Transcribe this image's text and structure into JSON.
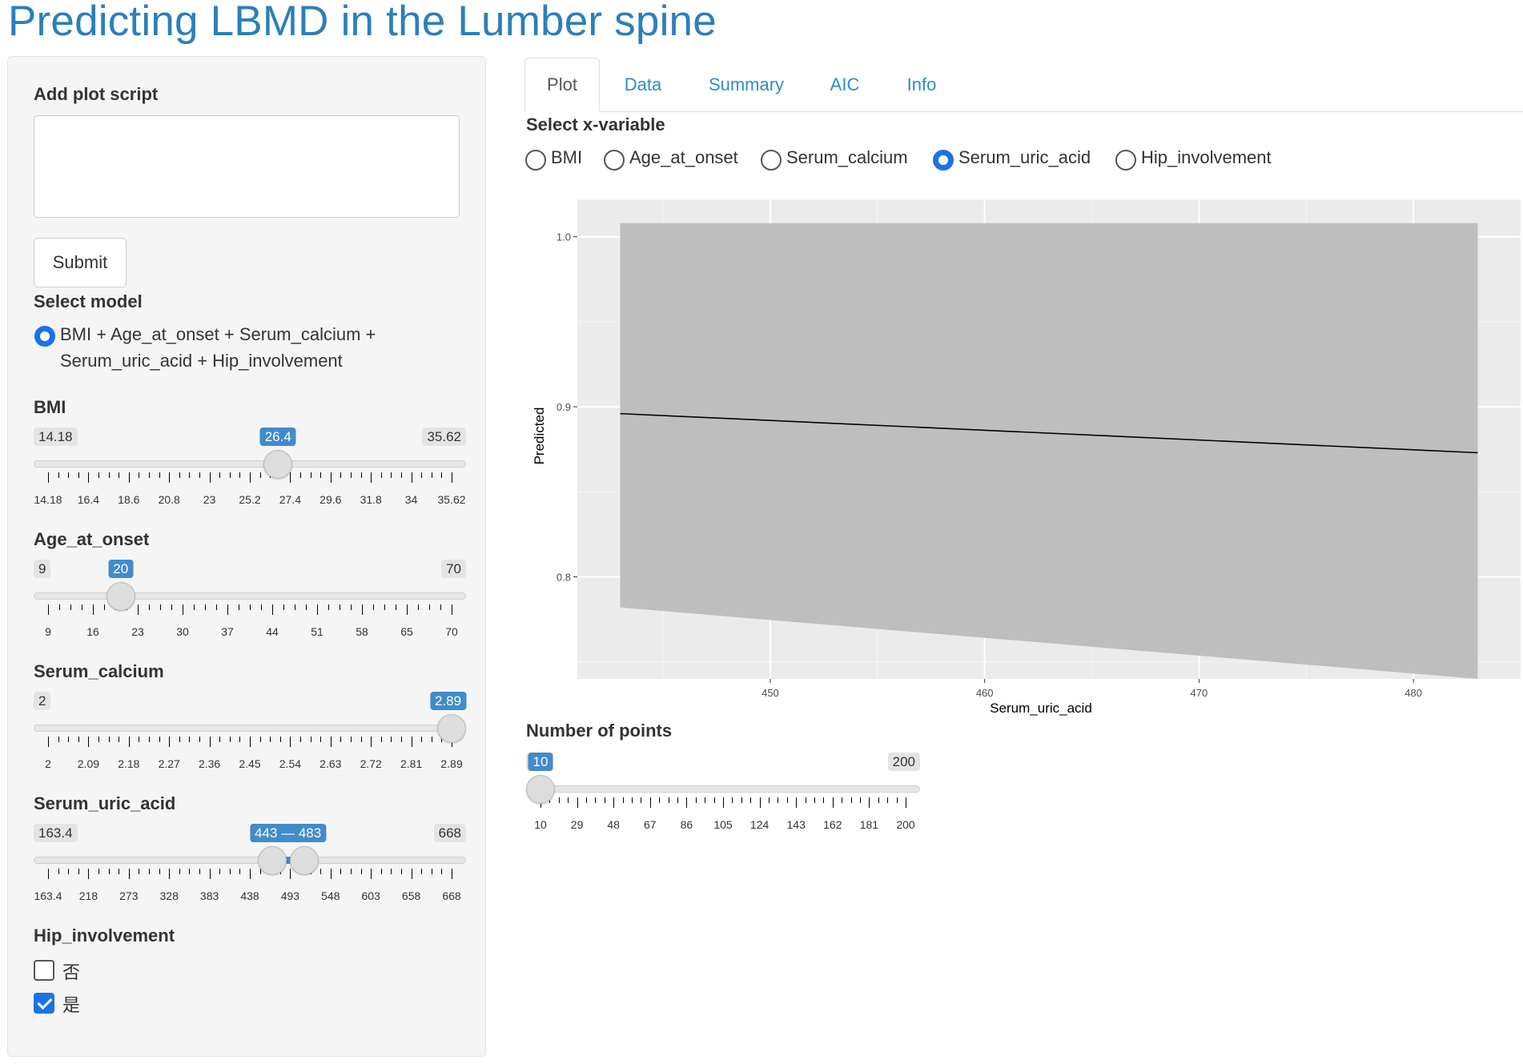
{
  "title": "Predicting LBMD in the Lumber spine",
  "sidebar": {
    "plot_script_label": "Add plot script",
    "plot_script_value": "",
    "submit_label": "Submit",
    "model_label": "Select model",
    "model_option": "BMI + Age_at_onset + Serum_calcium + Serum_uric_acid + Hip_involvement",
    "sliders": [
      {
        "label": "BMI",
        "min": "14.18",
        "max": "35.62",
        "value": "26.4",
        "value_fraction": 0.57,
        "ticks": [
          "14.18",
          "16.4",
          "18.6",
          "20.8",
          "23",
          "25.2",
          "27.4",
          "29.6",
          "31.8",
          "34",
          "35.62"
        ]
      },
      {
        "label": "Age_at_onset",
        "min": "9",
        "max": "70",
        "value": "20",
        "value_fraction": 0.18,
        "ticks": [
          "9",
          "16",
          "23",
          "30",
          "37",
          "44",
          "51",
          "58",
          "65",
          "70"
        ]
      },
      {
        "label": "Serum_calcium",
        "min": "2",
        "max": "2.89",
        "value": "2.89",
        "value_fraction": 1.0,
        "ticks": [
          "2",
          "2.09",
          "2.18",
          "2.27",
          "2.36",
          "2.45",
          "2.54",
          "2.63",
          "2.72",
          "2.81",
          "2.89"
        ]
      },
      {
        "label": "Serum_uric_acid",
        "min": "163.4",
        "max": "668",
        "value": "443 — 483",
        "range_fraction": [
          0.555,
          0.634
        ],
        "ticks": [
          "163.4",
          "218",
          "273",
          "328",
          "383",
          "438",
          "493",
          "548",
          "603",
          "658",
          "668"
        ]
      }
    ],
    "hip_label": "Hip_involvement",
    "hip_options": [
      {
        "label": "否",
        "checked": false
      },
      {
        "label": "是",
        "checked": true
      }
    ]
  },
  "tabs": [
    "Plot",
    "Data",
    "Summary",
    "AIC",
    "Info"
  ],
  "active_tab": "Plot",
  "xvar_label": "Select x-variable",
  "xvar_options": [
    "BMI",
    "Age_at_onset",
    "Serum_calcium",
    "Serum_uric_acid",
    "Hip_involvement"
  ],
  "xvar_selected": "Serum_uric_acid",
  "chart_data": {
    "type": "line",
    "title": "",
    "xlabel": "Serum_uric_acid",
    "ylabel": "Predicted",
    "xlim": [
      441,
      485
    ],
    "ylim": [
      0.74,
      1.022
    ],
    "xticks": [
      450,
      460,
      470,
      480
    ],
    "yticks": [
      0.8,
      0.9,
      1.0
    ],
    "xtick_labels": [
      "450",
      "460",
      "470",
      "480"
    ],
    "ytick_labels": [
      "0.8",
      "0.9",
      "1.0"
    ],
    "grid": true,
    "series": [
      {
        "x": [
          443,
          483
        ],
        "y": [
          0.896,
          0.873
        ]
      }
    ],
    "ribbon": {
      "x": [
        443,
        483
      ],
      "lower": [
        0.782,
        0.74
      ],
      "upper": [
        1.008,
        1.008
      ]
    }
  },
  "points": {
    "label": "Number of points",
    "min": "10",
    "max": "200",
    "value": "10",
    "value_fraction": 0.0,
    "ticks": [
      "10",
      "29",
      "48",
      "67",
      "86",
      "105",
      "124",
      "143",
      "162",
      "181",
      "200"
    ]
  },
  "colors": {
    "accent": "#428bca",
    "title": "#2c7fb8",
    "tab_link": "#2a8ec9",
    "radio_on": "#1a73e8",
    "panel_bg": "#ebebeb",
    "ribbon": "#bebebe"
  }
}
